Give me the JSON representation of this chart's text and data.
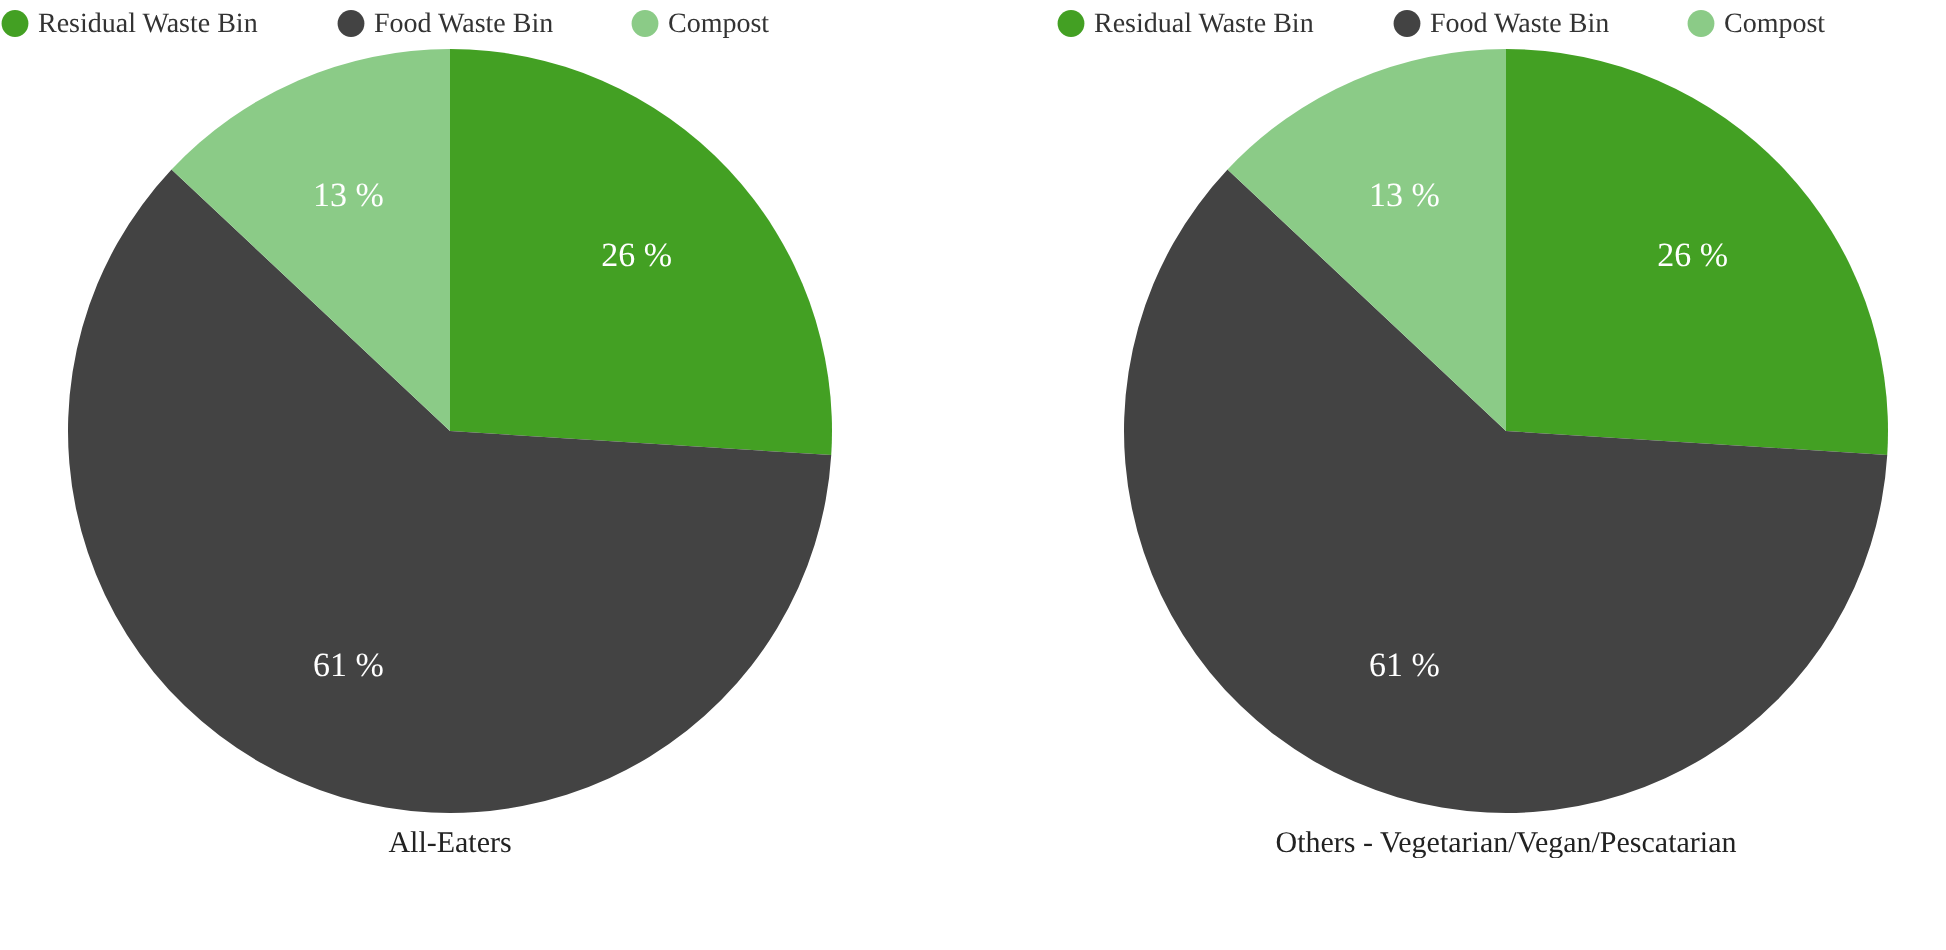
{
  "chart_data": [
    {
      "type": "pie",
      "title": "All-Eaters",
      "categories": [
        "Residual Waste Bin",
        "Food Waste Bin",
        "Compost"
      ],
      "values": [
        26,
        61,
        13
      ],
      "colors": [
        "#43a023",
        "#434343",
        "#8bcb87"
      ],
      "value_labels": [
        "26 %",
        "61 %",
        "13 %"
      ],
      "legend": "top"
    },
    {
      "type": "pie",
      "title": "Others - Vegetarian/Vegan/Pescatarian",
      "categories": [
        "Residual Waste Bin",
        "Food Waste Bin",
        "Compost"
      ],
      "values": [
        26,
        61,
        13
      ],
      "colors": [
        "#43a023",
        "#434343",
        "#8bcb87"
      ],
      "value_labels": [
        "26 %",
        "61 %",
        "13 %"
      ],
      "legend": "top"
    }
  ]
}
